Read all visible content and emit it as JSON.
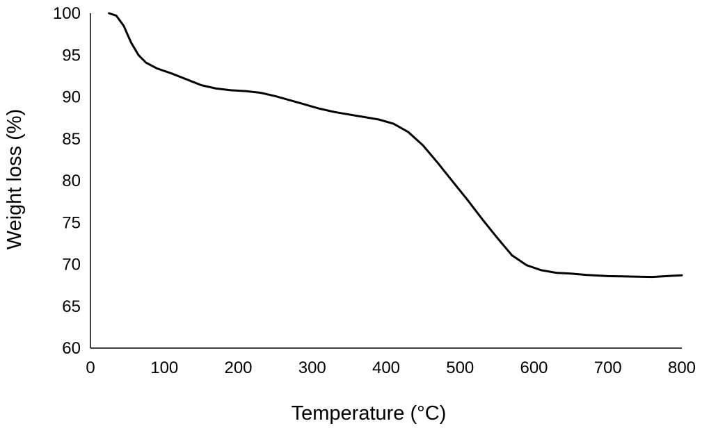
{
  "chart_data": {
    "type": "line",
    "title": "",
    "xlabel": "Temperature (°C)",
    "ylabel": "Weight loss (%)",
    "xlim": [
      0,
      800
    ],
    "ylim": [
      60,
      100
    ],
    "x_ticks": [
      "0",
      "100",
      "200",
      "300",
      "400",
      "500",
      "600",
      "700",
      "800"
    ],
    "y_ticks": [
      "60",
      "65",
      "70",
      "75",
      "80",
      "85",
      "90",
      "95",
      "100"
    ],
    "grid": false,
    "legend": "none",
    "line_color": "#000000",
    "series": [
      {
        "x": [
          25,
          35,
          45,
          55,
          65,
          75,
          90,
          110,
          130,
          150,
          170,
          190,
          210,
          230,
          250,
          270,
          290,
          310,
          330,
          350,
          370,
          390,
          410,
          430,
          450,
          470,
          490,
          510,
          530,
          550,
          570,
          590,
          610,
          630,
          650,
          670,
          700,
          730,
          760,
          790,
          800
        ],
        "y": [
          100,
          99.7,
          98.5,
          96.5,
          95,
          94.1,
          93.4,
          92.8,
          92.1,
          91.4,
          91,
          90.8,
          90.7,
          90.5,
          90.1,
          89.6,
          89.1,
          88.6,
          88.2,
          87.9,
          87.6,
          87.3,
          86.8,
          85.8,
          84.2,
          82.1,
          79.9,
          77.7,
          75.4,
          73.2,
          71.1,
          69.9,
          69.3,
          69.0,
          68.9,
          68.75,
          68.6,
          68.55,
          68.5,
          68.65,
          68.7
        ]
      }
    ]
  }
}
